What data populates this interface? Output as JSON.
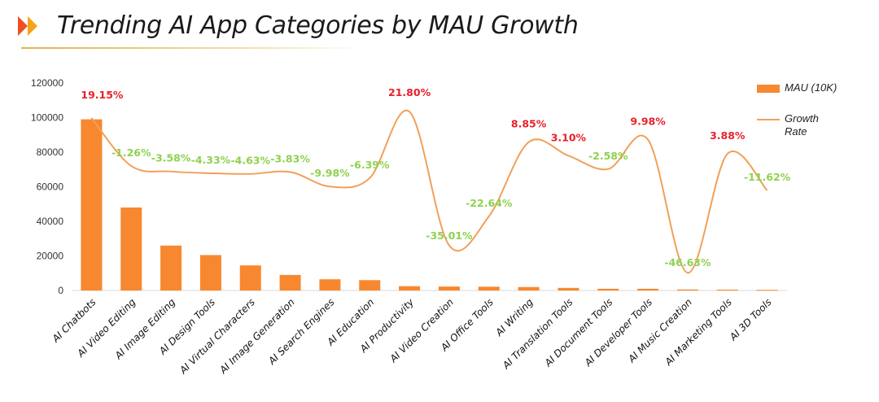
{
  "title": "Trending AI App Categories by MAU Growth",
  "colors": {
    "bar": "#f7882f",
    "line": "#f0a05a",
    "positive": "#e8202a",
    "negative": "#8fd14f",
    "logo1": "#f04e23",
    "logo2": "#f7a21b"
  },
  "legend": {
    "bar_label": "MAU (10K)",
    "line_label_1": "Growth",
    "line_label_2": "Rate"
  },
  "chart_data": {
    "type": "bar",
    "categories": [
      "AI Chatbots",
      "AI Video Editing",
      "AI Image Editing",
      "AI Design Tools",
      "AI Virtual Characters",
      "AI Image Generation",
      "AI Search Engines",
      "AI Education",
      "AI Productivity",
      "AI Video Creation",
      "AI Office Tools",
      "AI Writing",
      "AI Translation Tools",
      "AI Document Tools",
      "AI Developer Tools",
      "AI Music Creation",
      "AI Marketing Tools",
      "AI 3D Tools"
    ],
    "series": [
      {
        "name": "MAU (10K)",
        "type": "bar",
        "values": [
          99000,
          48000,
          26000,
          20500,
          14500,
          9000,
          6500,
          6000,
          2500,
          2300,
          2200,
          2000,
          1500,
          1000,
          1000,
          600,
          500,
          400
        ]
      },
      {
        "name": "Growth Rate",
        "type": "line",
        "values": [
          19.15,
          -1.26,
          -3.58,
          -4.33,
          -4.63,
          -3.83,
          -9.98,
          -6.39,
          21.8,
          -35.01,
          -22.64,
          8.85,
          3.1,
          -2.58,
          9.98,
          -46.63,
          3.88,
          -11.62
        ]
      }
    ],
    "growth_labels": [
      "19.15%",
      "-1.26%",
      "-3.58%",
      "-4.33%",
      "-4.63%",
      "-3.83%",
      "-9.98%",
      "-6.39%",
      "21.80%",
      "-35.01%",
      "-22.64%",
      "8.85%",
      "3.10%",
      "-2.58%",
      "9.98%",
      "-46.63%",
      "3.88%",
      "-11.62%"
    ],
    "yticks": [
      "0",
      "20000",
      "40000",
      "60000",
      "80000",
      "100000",
      "120000"
    ],
    "ylim": [
      0,
      120000
    ],
    "grid": false,
    "legend_position": "right"
  }
}
